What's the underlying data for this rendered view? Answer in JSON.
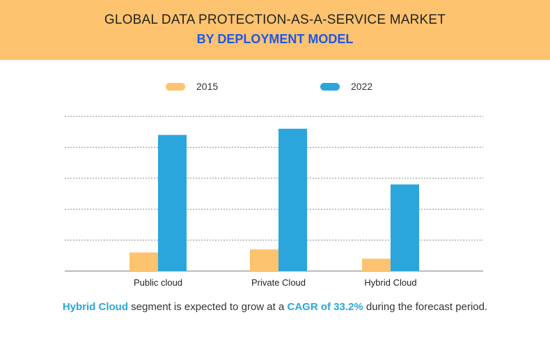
{
  "header": {
    "title": "GLOBAL DATA PROTECTION-AS-A-SERVICE MARKET",
    "subtitle": "BY DEPLOYMENT MODEL"
  },
  "colors": {
    "header_bg": "#fdc36f",
    "series_2015": "#fdc36f",
    "series_2022": "#2aa6dd",
    "subtitle": "#1f56e6",
    "highlight": "#2aa6dd"
  },
  "chart_data": {
    "type": "bar",
    "categories": [
      "Public cloud",
      "Private Cloud",
      "Hybrid Cloud"
    ],
    "series": [
      {
        "name": "2015",
        "values": [
          0.6,
          0.7,
          0.4
        ]
      },
      {
        "name": "2022",
        "values": [
          4.4,
          4.6,
          2.8
        ]
      }
    ],
    "ylim": [
      0,
      5
    ],
    "grid": true,
    "legend_position": "top-center",
    "xlabel": "",
    "ylabel": ""
  },
  "footnote": {
    "segment": "Hybrid Cloud",
    "text_mid": " segment is expected to grow at a ",
    "cagr": "CAGR of 33.2%",
    "text_end": " during the forecast period."
  }
}
